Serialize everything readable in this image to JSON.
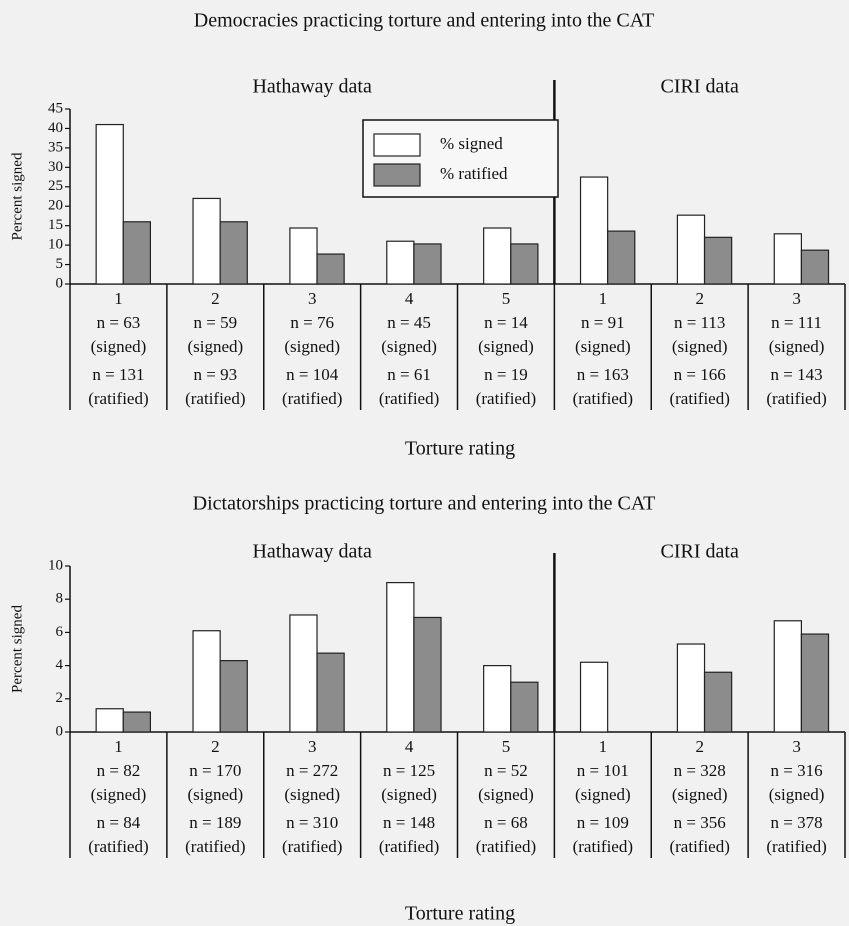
{
  "chart_data": [
    {
      "type": "bar",
      "title": "Democracies practicing torture and entering into the CAT",
      "ylabel": "Percent signed",
      "xlabel": "Torture rating",
      "panels": [
        {
          "title": "Hathaway data",
          "categories": [
            "1",
            "2",
            "3",
            "4",
            "5"
          ]
        },
        {
          "title": "CIRI data",
          "categories": [
            "1",
            "2",
            "3"
          ]
        }
      ],
      "category_notes": [
        [
          "n = 63",
          "(signed)",
          "n = 131",
          "(ratified)"
        ],
        [
          "n = 59",
          "(signed)",
          "n = 93",
          "(ratified)"
        ],
        [
          "n = 76",
          "(signed)",
          "n = 104",
          "(ratified)"
        ],
        [
          "n = 45",
          "(signed)",
          "n = 61",
          "(ratified)"
        ],
        [
          "n = 14",
          "(signed)",
          "n = 19",
          "(ratified)"
        ],
        [
          "n = 91",
          "(signed)",
          "n = 163",
          "(ratified)"
        ],
        [
          "n = 113",
          "(signed)",
          "n = 166",
          "(ratified)"
        ],
        [
          "n = 111",
          "(signed)",
          "n = 143",
          "(ratified)"
        ]
      ],
      "series": [
        {
          "name": "% signed",
          "color": "#ffffff",
          "values": [
            41,
            22,
            14.4,
            11,
            14.4,
            27.5,
            17.7,
            12.9
          ]
        },
        {
          "name": "% ratified",
          "color": "#8c8c8c",
          "values": [
            16,
            16,
            7.7,
            10.3,
            10.3,
            13.6,
            12,
            8.7
          ]
        }
      ],
      "ylim": [
        0,
        45
      ],
      "yticks": [
        0,
        5,
        10,
        15,
        20,
        25,
        30,
        35,
        40,
        45
      ],
      "legend": "top-center",
      "grid": false
    },
    {
      "type": "bar",
      "title": "Dictatorships practicing torture and entering into the CAT",
      "ylabel": "Percent signed",
      "xlabel": "Torture rating",
      "panels": [
        {
          "title": "Hathaway data",
          "categories": [
            "1",
            "2",
            "3",
            "4",
            "5"
          ]
        },
        {
          "title": "CIRI data",
          "categories": [
            "1",
            "2",
            "3"
          ]
        }
      ],
      "category_notes": [
        [
          "n = 82",
          "(signed)",
          "n = 84",
          "(ratified)"
        ],
        [
          "n = 170",
          "(signed)",
          "n = 189",
          "(ratified)"
        ],
        [
          "n = 272",
          "(signed)",
          "n = 310",
          "(ratified)"
        ],
        [
          "n = 125",
          "(signed)",
          "n = 148",
          "(ratified)"
        ],
        [
          "n = 52",
          "(signed)",
          "n = 68",
          "(ratified)"
        ],
        [
          "n = 101",
          "(signed)",
          "n = 109",
          "(ratified)"
        ],
        [
          "n =  328",
          "(signed)",
          "n = 356",
          "(ratified)"
        ],
        [
          "n = 316",
          "(signed)",
          "n = 378",
          "(ratified)"
        ]
      ],
      "series": [
        {
          "name": "% signed",
          "color": "#ffffff",
          "values": [
            1.4,
            6.1,
            7.05,
            9,
            4,
            4.2,
            5.3,
            6.7
          ]
        },
        {
          "name": "% ratified",
          "color": "#8c8c8c",
          "values": [
            1.2,
            4.3,
            4.75,
            6.9,
            3,
            null,
            3.6,
            5.9
          ]
        }
      ],
      "ylim": [
        0,
        10
      ],
      "yticks": [
        0,
        2,
        4,
        6,
        8,
        10
      ],
      "grid": false
    }
  ]
}
